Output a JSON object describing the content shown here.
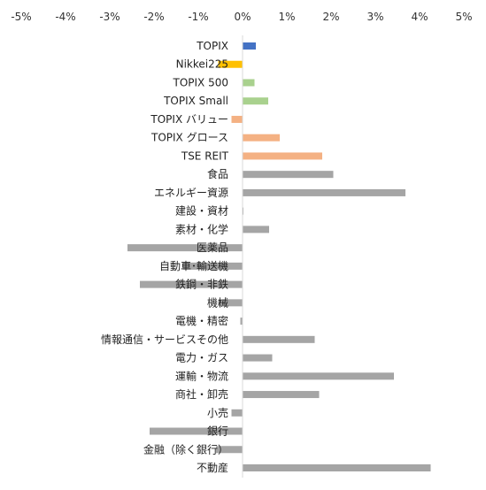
{
  "chart_data": {
    "type": "bar",
    "orientation": "horizontal",
    "title": "",
    "xlabel": "",
    "ylabel": "",
    "xlim": [
      -5,
      5
    ],
    "x_tick_labels": [
      "-5%",
      "-4%",
      "-3%",
      "-2%",
      "-1%",
      "0%",
      "1%",
      "2%",
      "3%",
      "4%",
      "5%"
    ],
    "grid": false,
    "legend": "none",
    "categories": [
      "TOPIX",
      "Nikkei225",
      "TOPIX 500",
      "TOPIX Small",
      "TOPIX バリュー",
      "TOPIX グロース",
      "TSE REIT",
      "食品",
      "エネルギー資源",
      "建設・資材",
      "素材・化学",
      "医薬品",
      "自動車･輸送機",
      "鉄鋼・非鉄",
      "機械",
      "電機・精密",
      "情報通信・サービスその他",
      "電力・ガス",
      "運輸・物流",
      "商社・卸売",
      "小売",
      "銀行",
      "金融（除く銀行）",
      "不動産"
    ],
    "values": [
      0.3,
      -0.55,
      0.27,
      0.58,
      -0.25,
      0.84,
      1.8,
      2.05,
      3.68,
      0.02,
      0.6,
      -2.6,
      -1.35,
      -2.32,
      -0.55,
      -0.05,
      1.63,
      0.67,
      3.42,
      1.73,
      -0.25,
      -2.1,
      -0.6,
      4.25
    ],
    "colors": [
      "#4472C4",
      "#FFC000",
      "#A9D18E",
      "#A9D18E",
      "#F4B183",
      "#F4B183",
      "#F4B183",
      "#A5A5A5",
      "#A5A5A5",
      "#A5A5A5",
      "#A5A5A5",
      "#A5A5A5",
      "#A5A5A5",
      "#A5A5A5",
      "#A5A5A5",
      "#A5A5A5",
      "#A5A5A5",
      "#A5A5A5",
      "#A5A5A5",
      "#A5A5A5",
      "#A5A5A5",
      "#A5A5A5",
      "#A5A5A5",
      "#A5A5A5"
    ]
  }
}
